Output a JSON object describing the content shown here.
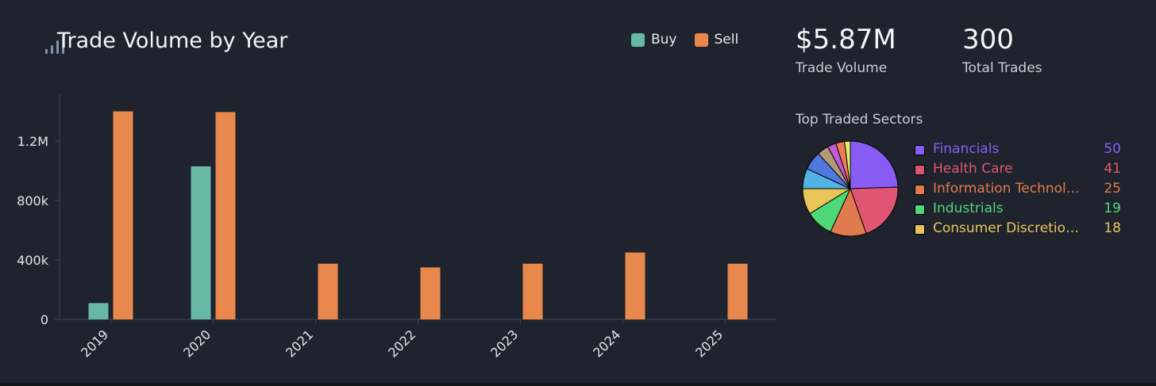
{
  "title": "Trade Volume by Year",
  "stats": [
    {
      "value": "$5.87M",
      "label": "Trade Volume"
    },
    {
      "value": "300",
      "label": "Total Trades"
    }
  ],
  "sectors_title": "Top Traded Sectors",
  "sectors": [
    {
      "name": "Financials",
      "display": "Financials",
      "count": 50,
      "color": "#8a5cf6"
    },
    {
      "name": "Health Care",
      "display": "Health Care",
      "count": 41,
      "color": "#e05572"
    },
    {
      "name": "Information Technology",
      "display": "Information Technolo...",
      "count": 25,
      "color": "#e07a4f"
    },
    {
      "name": "Industrials",
      "display": "Industrials",
      "count": 19,
      "color": "#4fd777"
    },
    {
      "name": "Consumer Discretionary",
      "display": "Consumer Discretion...",
      "count": 18,
      "color": "#e8c55a"
    }
  ],
  "pie_other_colors": [
    "#4fb3e3",
    "#4f78e0",
    "#b09a7a",
    "#c05bd6",
    "#f07a55",
    "#dff06a"
  ],
  "pie_other_values": [
    14,
    13,
    8,
    6,
    6,
    4
  ],
  "colors": {
    "buy": "#68b8a6",
    "sell": "#e8884d",
    "background": "#1f232d"
  },
  "chart_data": {
    "type": "bar",
    "categories": [
      "2019",
      "2020",
      "2021",
      "2022",
      "2023",
      "2024",
      "2025"
    ],
    "series": [
      {
        "name": "Buy",
        "values": [
          110000,
          1030000,
          0,
          0,
          0,
          0,
          0
        ]
      },
      {
        "name": "Sell",
        "values": [
          1400000,
          1395000,
          375000,
          350000,
          375000,
          450000,
          375000
        ]
      }
    ],
    "yticks": [
      0,
      400000,
      800000,
      1200000
    ],
    "ytick_labels": [
      "0",
      "400k",
      "800k",
      "1.2M"
    ],
    "ylim": [
      0,
      1520000
    ],
    "legend": "top-right",
    "grid": false
  }
}
